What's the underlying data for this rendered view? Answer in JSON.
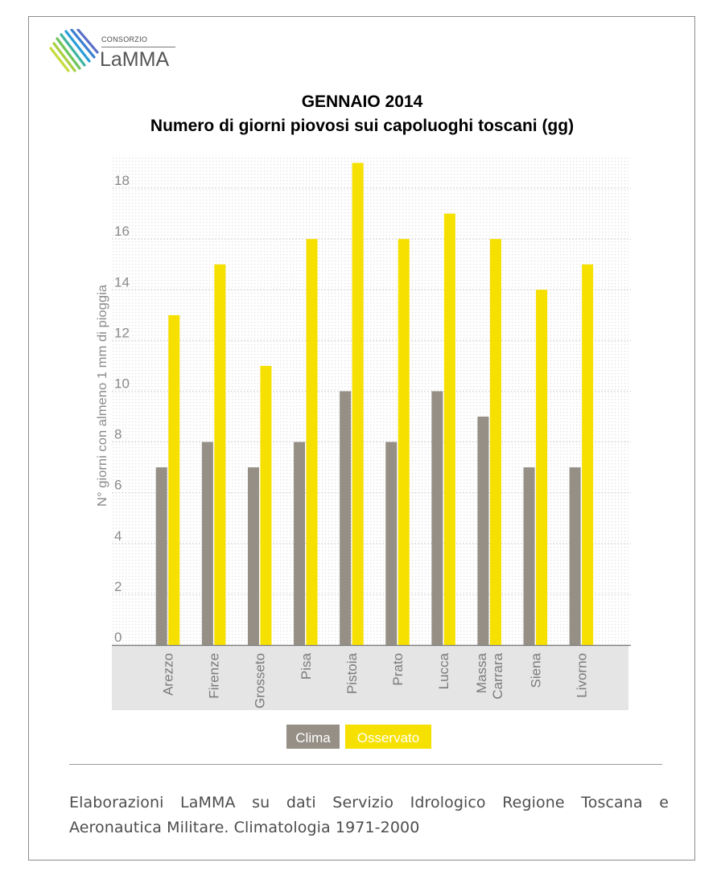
{
  "header": {
    "logo_small": "CONSORZIO",
    "logo_big": "LaMMA",
    "title_line1": "GENNAIO 2014",
    "title_line2": "Numero di giorni piovosi sui capoluoghi toscani (gg)"
  },
  "chart_data": {
    "type": "bar",
    "ylabel": "N° giorni con almeno 1 mm di pioggia",
    "ylim": [
      0,
      19.3
    ],
    "yticks": [
      0,
      2,
      4,
      6,
      8,
      10,
      12,
      14,
      16,
      18
    ],
    "grid": true,
    "legend_position": "bottom-center",
    "categories": [
      "Arezzo",
      "Firenze",
      "Grosseto",
      "Pisa",
      "Pistoia",
      "Prato",
      "Lucca",
      "Massa\nCarrara",
      "Siena",
      "Livorno"
    ],
    "series": [
      {
        "name": "Clima",
        "color": "#958f85",
        "values": [
          7,
          8,
          7,
          8,
          10,
          8,
          10,
          9,
          7,
          7
        ]
      },
      {
        "name": "Osservato",
        "color": "#f6e000",
        "values": [
          13,
          15,
          11,
          16,
          19,
          16,
          17,
          16,
          14,
          15
        ]
      }
    ]
  },
  "footer": {
    "source": "Elaborazioni LaMMA su dati Servizio Idrologico Regione Toscana e Aeronautica Militare. Climatologia 1971-2000"
  }
}
